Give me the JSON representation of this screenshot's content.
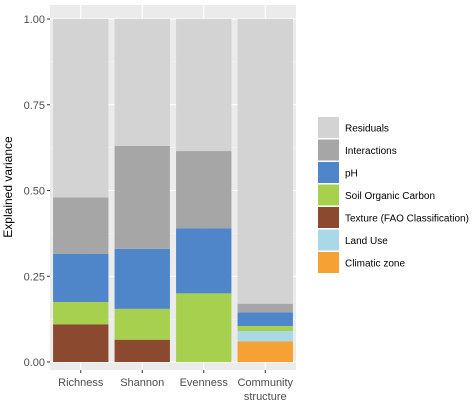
{
  "chart_data": {
    "type": "bar",
    "stacked": true,
    "ylabel": "Explained variance",
    "xlabel": "",
    "ylim": [
      0,
      1
    ],
    "yticks": [
      "0.00",
      "0.25",
      "0.50",
      "0.75",
      "1.00"
    ],
    "ytick_values": [
      0,
      0.25,
      0.5,
      0.75,
      1.0
    ],
    "grid": true,
    "legend_position": "right",
    "categories": [
      "Richness",
      "Shannon",
      "Evenness",
      "Community structure"
    ],
    "category_lines": [
      [
        "Richness"
      ],
      [
        "Shannon"
      ],
      [
        "Evenness"
      ],
      [
        "Community",
        "structure"
      ]
    ],
    "series": [
      {
        "name": "Climatic zone",
        "color": "#f5a133",
        "values": [
          0.0,
          0.0,
          0.0,
          0.06
        ]
      },
      {
        "name": "Land Use",
        "color": "#aad8e6",
        "values": [
          0.0,
          0.0,
          0.0,
          0.03
        ]
      },
      {
        "name": "Texture (FAO Classification)",
        "color": "#8b4a30",
        "values": [
          0.11,
          0.065,
          0.0,
          0.0
        ]
      },
      {
        "name": "Soil Organic Carbon",
        "color": "#a8d04f",
        "values": [
          0.065,
          0.09,
          0.2,
          0.015
        ]
      },
      {
        "name": "pH",
        "color": "#4e86c9",
        "values": [
          0.14,
          0.175,
          0.19,
          0.04
        ]
      },
      {
        "name": "Interactions",
        "color": "#a6a6a6",
        "values": [
          0.165,
          0.3,
          0.225,
          0.025
        ]
      },
      {
        "name": "Residuals",
        "color": "#d3d3d3",
        "values": [
          0.52,
          0.37,
          0.385,
          0.83
        ]
      }
    ],
    "legend_order": [
      "Residuals",
      "Interactions",
      "pH",
      "Soil Organic Carbon",
      "Texture (FAO Classification)",
      "Land Use",
      "Climatic zone"
    ]
  }
}
